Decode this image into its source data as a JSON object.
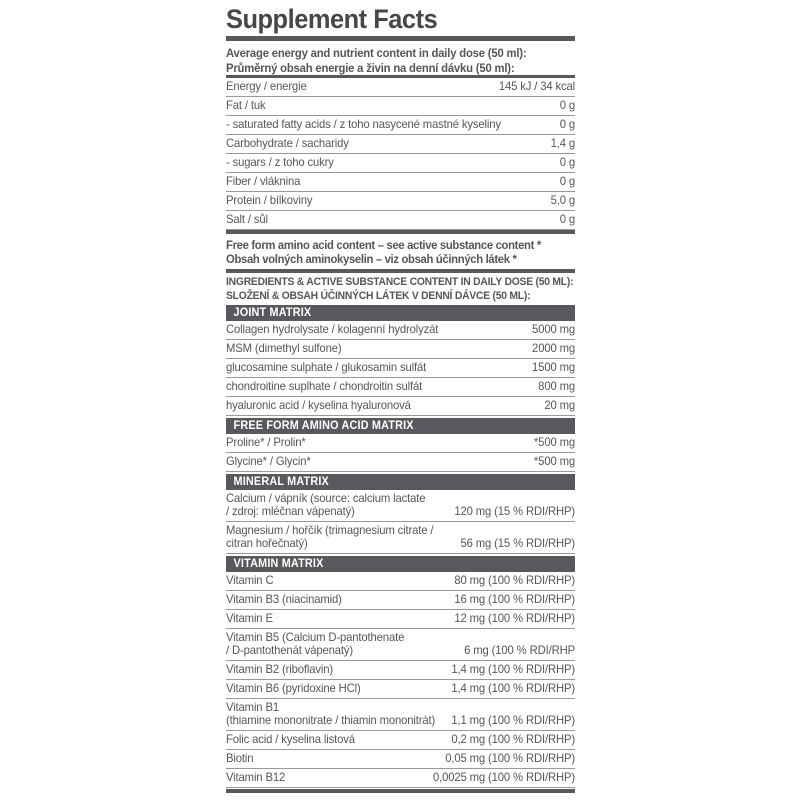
{
  "label": {
    "title": "Supplement Facts",
    "intro_lines": [
      "Average energy and nutrient content in daily dose (50 ml):",
      "Průměrný obsah energie a živin na denní dávku (50 ml):"
    ],
    "nutrition_rows": [
      {
        "label": "Energy / energie",
        "value": "145 kJ / 34 kcal"
      },
      {
        "label": "Fat / tuk",
        "value": "0 g"
      },
      {
        "label": "- saturated fatty acids / z toho nasycené mastné kyseliny",
        "value": "0 g"
      },
      {
        "label": "Carbohydrate / sacharidy",
        "value": "1,4 g"
      },
      {
        "label": "- sugars / z toho cukry",
        "value": "0 g"
      },
      {
        "label": "Fiber / vláknina",
        "value": "0 g"
      },
      {
        "label": "Protein / bílkoviny",
        "value": "5,0 g"
      },
      {
        "label": "Salt / sůl",
        "value": "0 g"
      }
    ],
    "amino_note_lines": [
      "Free form amino acid content – see active substance content *",
      "Obsah volných aminokyselin – viz obsah účinných látek *"
    ],
    "ingredients_heading_lines": [
      "INGREDIENTS & ACTIVE SUBSTANCE CONTENT IN DAILY DOSE (50 ML):",
      "SLOŽENÍ & OBSAH ÚČINNÝCH LÁTEK V DENNÍ DÁVCE (50 ML):"
    ],
    "sections": [
      {
        "title": "JOINT MATRIX",
        "rows": [
          {
            "label": "Collagen hydrolysate / kolagenní hydrolyzát",
            "value": "5000 mg"
          },
          {
            "label": "MSM (dimethyl sulfone)",
            "value": "2000 mg"
          },
          {
            "label": "glucosamine sulphate / glukosamin sulfát",
            "value": "1500 mg"
          },
          {
            "label": "chondroitine suplhate / chondroitin sulfát",
            "value": "800 mg"
          },
          {
            "label": "hyaluronic acid / kyselina hyaluronová",
            "value": "20 mg"
          }
        ]
      },
      {
        "title": "FREE FORM AMINO ACID MATRIX",
        "rows": [
          {
            "label": "Proline* / Prolin*",
            "value": "*500 mg"
          },
          {
            "label": "Glycine* / Glycin*",
            "value": "*500 mg"
          }
        ]
      },
      {
        "title": "MINERAL MATRIX",
        "rows": [
          {
            "label": "Calcium / vápník (source: calcium lactate\n/ zdroj: mléčnan vápenatý)",
            "value": "120 mg (15 % RDI/RHP)"
          },
          {
            "label": "Magnesium / hořčík (trimagnesium citrate /\ncitran hořečnatý)",
            "value": "56 mg (15 % RDI/RHP)"
          }
        ]
      },
      {
        "title": "VITAMIN MATRIX",
        "rows": [
          {
            "label": "Vitamin C",
            "value": "80 mg (100 % RDI/RHP)"
          },
          {
            "label": "Vitamin B3 (niacinamid)",
            "value": "16 mg (100 % RDI/RHP)"
          },
          {
            "label": "Vitamin E",
            "value": "12 mg (100 % RDI/RHP)"
          },
          {
            "label": "Vitamin B5 (Calcium D-pantothenate\n/ D-pantothenát vápenatý)",
            "value": "6 mg (100 % RDI/RHP"
          },
          {
            "label": "Vitamin B2 (riboflavin)",
            "value": "1,4 mg (100 % RDI/RHP)"
          },
          {
            "label": "Vitamin B6 (pyridoxine HCl)",
            "value": "1,4 mg (100 % RDI/RHP)"
          },
          {
            "label": "Vitamin B1\n(thiamine mononitrate / thiamin mononitrát)",
            "value": "1,1 mg (100 % RDI/RHP)"
          },
          {
            "label": "Folic acid / kyselina listová",
            "value": "0,2 mg (100 % RDI/RHP)"
          },
          {
            "label": "Biotin",
            "value": "0,05 mg (100 % RDI/RHP)"
          },
          {
            "label": "Vitamin B12",
            "value": "0,0025 mg (100 % RDI/RHP)"
          }
        ]
      }
    ],
    "colors": {
      "bar": "#58595d",
      "text": "#55565a",
      "title": "#46474b",
      "divider": "#97989b",
      "header_text": "#ffffff",
      "background": "#ffffff"
    }
  }
}
